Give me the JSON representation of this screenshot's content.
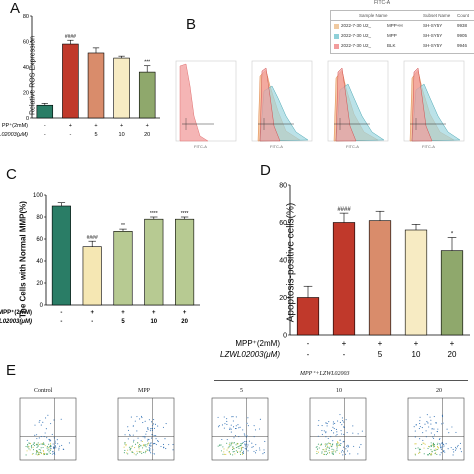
{
  "panels": {
    "A": "A",
    "B": "B",
    "C": "C",
    "D": "D",
    "E": "E"
  },
  "colors": {
    "control": "#2a7d66",
    "mpp": "#c0392b",
    "mpp_lzw5": "#d98c6b",
    "mpp_lzw10": "#f7ebc3",
    "mpp_lzw20": "#8fa86c",
    "c_mpp": "#f5e7b3",
    "c_lzw": "#b7ca92"
  },
  "panelA": {
    "ylabel": "Relative ROS Expression",
    "row1_label": "PP⁺(2mM)",
    "row2_label": "ZWL02003(μM)",
    "row1": [
      "-",
      "+",
      "+",
      "+",
      "+"
    ],
    "row2": [
      "-",
      "-",
      "5",
      "10",
      "20"
    ],
    "sig": [
      "",
      "####",
      "",
      "",
      "***"
    ],
    "chart_data": {
      "type": "bar",
      "categories": [
        "Control",
        "MPP",
        "MPP+5",
        "MPP+10",
        "MPP+20"
      ],
      "values": [
        10,
        58,
        51,
        47,
        36
      ],
      "errors": [
        1.5,
        3,
        4,
        1.5,
        5
      ],
      "ylim": [
        0,
        80
      ],
      "yticks": [
        0,
        20,
        40,
        60,
        80
      ]
    }
  },
  "panelB": {
    "header": "FITC-A",
    "table_header": [
      "Sample Name",
      "Subset Name",
      "Count"
    ],
    "table_rows": [
      [
        "2022-7-30 U2_",
        "MPP+H",
        "SH-SY5Y",
        "9938"
      ],
      [
        "2022-7-30 U2_",
        "MPP",
        "SH-SY5Y",
        "9905"
      ],
      [
        "2022-7-30 U2_",
        "BLK",
        "SH-SY5Y",
        "9946"
      ]
    ],
    "swatches": [
      "#f0c9a0",
      "#8fd0d8",
      "#f29c9c"
    ],
    "axis_label": "FITC-A"
  },
  "panelC": {
    "ylabel": "The Cells with Normal MMP(%)",
    "row1_label": "MPP⁺(2mM)",
    "row2_label": "LZWL02003(μM)",
    "row1": [
      "-",
      "+",
      "+",
      "+",
      "+"
    ],
    "row2": [
      "-",
      "-",
      "5",
      "10",
      "20"
    ],
    "sig": [
      "",
      "####",
      "**",
      "****",
      "****"
    ],
    "chart_data": {
      "type": "bar",
      "categories": [
        "Control",
        "MPP",
        "MPP+5",
        "MPP+10",
        "MPP+20"
      ],
      "values": [
        90,
        53,
        67,
        78,
        78
      ],
      "errors": [
        3,
        5,
        2,
        2,
        2
      ],
      "ylim": [
        0,
        100
      ],
      "yticks": [
        0,
        20,
        40,
        60,
        80,
        100
      ]
    }
  },
  "panelD": {
    "ylabel": "Apoptosis-positive cells(%)",
    "row1_label": "MPP⁺(2mM)",
    "row2_label": "LZWL02003(μM)",
    "row1": [
      "-",
      "+",
      "+",
      "+",
      "+"
    ],
    "row2": [
      "-",
      "-",
      "5",
      "10",
      "20"
    ],
    "sig": [
      "",
      "####",
      "",
      "",
      "*"
    ],
    "chart_data": {
      "type": "bar",
      "categories": [
        "Control",
        "MPP",
        "MPP+5",
        "MPP+10",
        "MPP+20"
      ],
      "values": [
        20,
        60,
        61,
        56,
        45
      ],
      "errors": [
        6,
        5,
        5,
        3,
        7
      ],
      "ylim": [
        0,
        80
      ],
      "yticks": [
        0,
        20,
        40,
        60,
        80
      ]
    }
  },
  "panelE": {
    "titles": [
      "Control",
      "MPP",
      "5",
      "10",
      "20"
    ],
    "group_label": "MPP⁺+LZWL02003"
  }
}
